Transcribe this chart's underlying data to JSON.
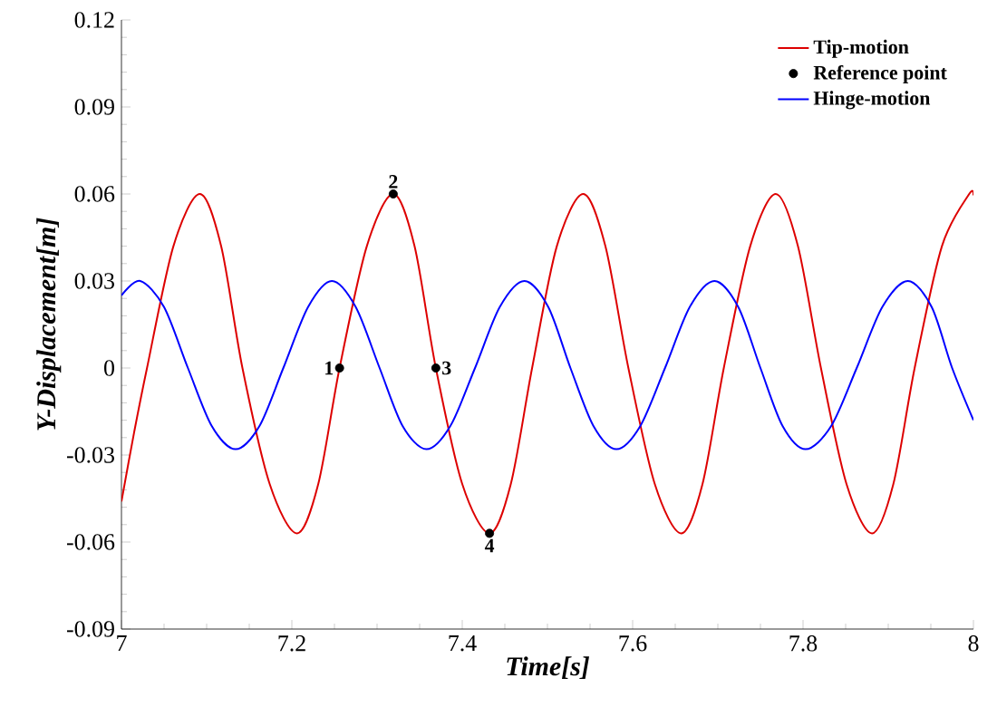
{
  "chart_data": {
    "type": "line",
    "xlabel": "Time[s]",
    "ylabel": "Y-Displacement[m]",
    "xlim": [
      7,
      8
    ],
    "ylim": [
      -0.09,
      0.12
    ],
    "xticks": [
      7,
      7.2,
      7.4,
      7.6,
      7.8,
      8
    ],
    "yticks": [
      -0.09,
      -0.06,
      -0.03,
      0,
      0.03,
      0.06,
      0.09,
      0.12
    ],
    "legend": "top right",
    "annotations": [
      {
        "text": "1",
        "x": 7.256,
        "y": 0
      },
      {
        "text": "2",
        "x": 7.319,
        "y": 0.06
      },
      {
        "text": "3",
        "x": 7.369,
        "y": 0
      },
      {
        "text": "4",
        "x": 7.432,
        "y": -0.057
      }
    ],
    "series": [
      {
        "name": "Tip-motion",
        "color": "#dd0000",
        "x": [
          7.0,
          7.015,
          7.03,
          7.061,
          7.092,
          7.117,
          7.142,
          7.174,
          7.206,
          7.231,
          7.256,
          7.288,
          7.319,
          7.344,
          7.369,
          7.4,
          7.432,
          7.457,
          7.482,
          7.511,
          7.542,
          7.568,
          7.595,
          7.626,
          7.657,
          7.682,
          7.707,
          7.738,
          7.768,
          7.794,
          7.821,
          7.851,
          7.881,
          7.906,
          7.931,
          7.963,
          7.995,
          8.0
        ],
        "values": [
          -0.046,
          -0.022,
          0.0,
          0.042,
          0.06,
          0.042,
          0.0,
          -0.04,
          -0.057,
          -0.04,
          0.0,
          0.042,
          0.06,
          0.042,
          0.0,
          -0.04,
          -0.057,
          -0.04,
          0.0,
          0.042,
          0.06,
          0.042,
          0.0,
          -0.04,
          -0.057,
          -0.04,
          0.0,
          0.042,
          0.06,
          0.042,
          0.0,
          -0.04,
          -0.057,
          -0.04,
          0.0,
          0.042,
          0.06,
          0.0595
        ]
      },
      {
        "name": "Reference point",
        "type": "scatter",
        "color": "#000000",
        "x": [
          7.256,
          7.319,
          7.369,
          7.432
        ],
        "values": [
          0,
          0.06,
          0,
          -0.057
        ]
      },
      {
        "name": "Hinge-motion",
        "color": "#0000ff",
        "x": [
          7.0,
          7.022,
          7.05,
          7.078,
          7.106,
          7.134,
          7.162,
          7.19,
          7.219,
          7.247,
          7.275,
          7.303,
          7.33,
          7.358,
          7.386,
          7.415,
          7.444,
          7.473,
          7.501,
          7.527,
          7.554,
          7.581,
          7.609,
          7.638,
          7.667,
          7.696,
          7.724,
          7.75,
          7.776,
          7.803,
          7.833,
          7.863,
          7.893,
          7.923,
          7.951,
          7.975,
          8.0
        ],
        "values": [
          0.025,
          0.03,
          0.021,
          0.0,
          -0.02,
          -0.028,
          -0.02,
          0.0,
          0.021,
          0.03,
          0.021,
          0.0,
          -0.02,
          -0.028,
          -0.02,
          0.0,
          0.021,
          0.03,
          0.021,
          0.0,
          -0.02,
          -0.028,
          -0.02,
          0.0,
          0.021,
          0.03,
          0.021,
          0.0,
          -0.02,
          -0.028,
          -0.02,
          0.0,
          0.021,
          0.03,
          0.021,
          0.0,
          -0.018
        ]
      }
    ]
  }
}
